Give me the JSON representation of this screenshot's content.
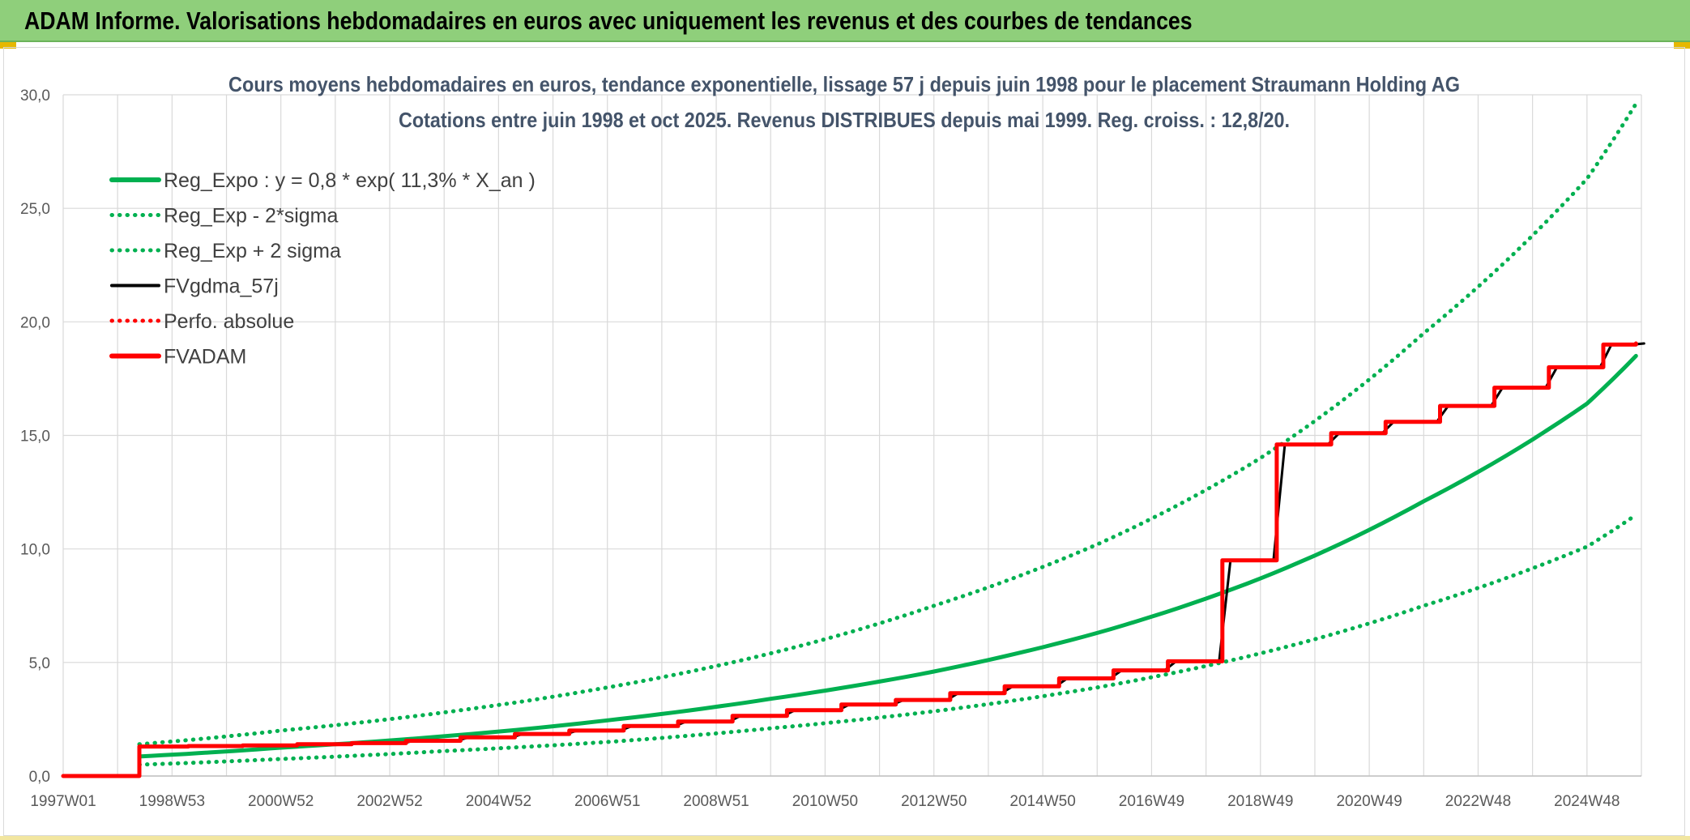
{
  "header": {
    "title": "ADAM Informe. Valorisations hebdomadaires en euros avec uniquement les revenus et des courbes de tendances"
  },
  "chart_data": {
    "type": "line",
    "title": "Cours moyens hebdomadaires en euros, tendance exponentielle, lissage 57 j depuis juin 1998 pour le placement Straumann Holding AG",
    "subtitle": "Cotations entre juin 1998 et oct 2025. Revenus DISTRIBUES depuis mai 1999. Reg. croiss. : 12,8/20.",
    "xlabel": "",
    "ylabel": "",
    "xlim": [
      1997.0,
      2026.0
    ],
    "ylim": [
      0,
      30
    ],
    "y_ticks": [
      "0,0",
      "5,0",
      "10,0",
      "15,0",
      "20,0",
      "25,0",
      "30,0"
    ],
    "x_tick_labels": [
      {
        "label": "1997W01",
        "x": 1997.0
      },
      {
        "label": "1998W53",
        "x": 1999.0
      },
      {
        "label": "2000W52",
        "x": 2001.0
      },
      {
        "label": "2002W52",
        "x": 2003.0
      },
      {
        "label": "2004W52",
        "x": 2005.0
      },
      {
        "label": "2006W51",
        "x": 2007.0
      },
      {
        "label": "2008W51",
        "x": 2009.0
      },
      {
        "label": "2010W50",
        "x": 2011.0
      },
      {
        "label": "2012W50",
        "x": 2013.0
      },
      {
        "label": "2014W50",
        "x": 2015.0
      },
      {
        "label": "2016W49",
        "x": 2017.0
      },
      {
        "label": "2018W49",
        "x": 2019.0
      },
      {
        "label": "2020W49",
        "x": 2021.0
      },
      {
        "label": "2022W48",
        "x": 2023.0
      },
      {
        "label": "2024W48",
        "x": 2025.0
      }
    ],
    "grid": true,
    "legend_position": "top-left",
    "series": [
      {
        "name": "Reg_Expo : y = 0,8 * exp( 11,3% *  X_an )",
        "color": "#00b050",
        "style": "solid",
        "x": [
          1998.4,
          2001.0,
          2004.0,
          2007.0,
          2010.0,
          2013.0,
          2016.0,
          2019.0,
          2022.0,
          2025.0,
          2025.9
        ],
        "values": [
          0.86,
          1.25,
          1.75,
          2.45,
          3.4,
          4.6,
          6.3,
          8.7,
          12.1,
          16.4,
          18.5
        ]
      },
      {
        "name": "Reg_Exp - 2*sigma",
        "color": "#00b050",
        "style": "dotted",
        "x": [
          1998.4,
          2001.0,
          2004.0,
          2007.0,
          2010.0,
          2013.0,
          2016.0,
          2019.0,
          2022.0,
          2025.0,
          2025.9
        ],
        "values": [
          0.5,
          0.75,
          1.1,
          1.5,
          2.1,
          2.85,
          3.9,
          5.4,
          7.5,
          10.1,
          11.5
        ]
      },
      {
        "name": "Reg_Exp + 2 sigma",
        "color": "#00b050",
        "style": "dotted",
        "x": [
          1998.4,
          2001.0,
          2004.0,
          2007.0,
          2010.0,
          2013.0,
          2016.0,
          2019.0,
          2022.0,
          2025.0,
          2025.9
        ],
        "values": [
          1.4,
          2.0,
          2.8,
          3.9,
          5.4,
          7.5,
          10.2,
          14.0,
          19.5,
          26.3,
          29.6
        ]
      },
      {
        "name": "FVgdma_57j",
        "color": "#000000",
        "style": "solid",
        "x": [
          1997.0,
          1998.4,
          1998.4,
          1999.3,
          2000.3,
          2001.3,
          2002.3,
          2003.3,
          2004.3,
          2005.3,
          2006.3,
          2007.3,
          2008.3,
          2009.3,
          2010.3,
          2011.3,
          2012.3,
          2013.3,
          2014.3,
          2015.3,
          2016.3,
          2017.3,
          2018.3,
          2019.3,
          2020.3,
          2021.3,
          2022.3,
          2023.3,
          2024.3,
          2025.3,
          2025.9
        ],
        "values": [
          0,
          0,
          1.3,
          1.32,
          1.35,
          1.4,
          1.45,
          1.55,
          1.7,
          1.85,
          2.0,
          2.2,
          2.4,
          2.65,
          2.9,
          3.15,
          3.35,
          3.65,
          3.95,
          4.3,
          4.65,
          5.05,
          9.5,
          14.6,
          15.1,
          15.6,
          16.3,
          17.1,
          18.0,
          19.0,
          19.05
        ]
      },
      {
        "name": "Perfo. absolue",
        "color": "#ff0000",
        "style": "dotted",
        "x": [],
        "values": []
      },
      {
        "name": "FVADAM",
        "color": "#ff0000",
        "style": "step",
        "x": [
          1997.0,
          1998.4,
          1998.4,
          1999.3,
          2000.3,
          2001.3,
          2002.3,
          2003.3,
          2004.3,
          2005.3,
          2006.3,
          2007.3,
          2008.3,
          2009.3,
          2010.3,
          2011.3,
          2012.3,
          2013.3,
          2014.3,
          2015.3,
          2016.3,
          2017.3,
          2018.3,
          2019.3,
          2020.3,
          2021.3,
          2022.3,
          2023.3,
          2024.3,
          2025.3,
          2025.9
        ],
        "values": [
          0,
          0,
          1.3,
          1.32,
          1.35,
          1.4,
          1.45,
          1.55,
          1.7,
          1.85,
          2.0,
          2.2,
          2.4,
          2.65,
          2.9,
          3.15,
          3.35,
          3.65,
          3.95,
          4.3,
          4.65,
          5.05,
          9.5,
          14.6,
          15.1,
          15.6,
          16.3,
          17.1,
          18.0,
          19.0,
          19.05
        ]
      }
    ]
  }
}
